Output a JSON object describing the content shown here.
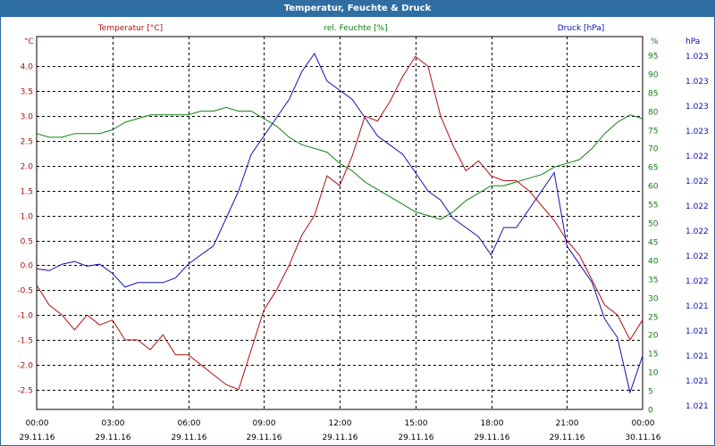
{
  "window": {
    "title": "Temperatur, Feuchte & Druck"
  },
  "colors": {
    "temperature": "#b01010",
    "humidity": "#108010",
    "pressure": "#1010b0",
    "grid": "#000000",
    "title_bar": "#2f6ea3"
  },
  "chart_data": {
    "type": "line",
    "title": "Temperatur, Feuchte & Druck",
    "grid": true,
    "legend": "top",
    "x_ticks": [
      {
        "time": "00:00",
        "date": "29.11.16"
      },
      {
        "time": "03:00",
        "date": "29.11.16"
      },
      {
        "time": "06:00",
        "date": "29.11.16"
      },
      {
        "time": "09:00",
        "date": "29.11.16"
      },
      {
        "time": "12:00",
        "date": "29.11.16"
      },
      {
        "time": "15:00",
        "date": "29.11.16"
      },
      {
        "time": "18:00",
        "date": "29.11.16"
      },
      {
        "time": "21:00",
        "date": "29.11.16"
      },
      {
        "time": "00:00",
        "date": "30.11.16"
      }
    ],
    "xlim": [
      0,
      24
    ],
    "axes": {
      "temperature": {
        "unit": "°C",
        "ylim": [
          -2.9,
          4.6
        ],
        "ticks": [
          "4.0",
          "3.5",
          "3.0",
          "2.5",
          "2.0",
          "1.5",
          "1.0",
          "0.5",
          "0.0",
          "-0.5",
          "-1.0",
          "-1.5",
          "-2.0",
          "-2.5"
        ],
        "tick_values": [
          4.0,
          3.5,
          3.0,
          2.5,
          2.0,
          1.5,
          1.0,
          0.5,
          0.0,
          -0.5,
          -1.0,
          -1.5,
          -2.0,
          -2.5
        ]
      },
      "humidity": {
        "unit": "%",
        "ylim": [
          0,
          100
        ],
        "ticks": [
          "95",
          "90",
          "85",
          "80",
          "75",
          "70",
          "65",
          "60",
          "55",
          "50",
          "45",
          "40",
          "35",
          "30",
          "25",
          "20",
          "15",
          "10",
          "5",
          "0"
        ],
        "tick_values": [
          95,
          90,
          85,
          80,
          75,
          70,
          65,
          60,
          55,
          50,
          45,
          40,
          35,
          30,
          25,
          20,
          15,
          10,
          5,
          0
        ]
      },
      "pressure": {
        "unit": "hPa",
        "ticks": [
          "1.023",
          "1.023",
          "1.023",
          "1.023",
          "1.022",
          "1.022",
          "1.022",
          "1.022",
          "1.022",
          "1.022",
          "1.021",
          "1.021",
          "1.021",
          "1.021",
          "1.021"
        ]
      }
    },
    "series": [
      {
        "name": "Temperatur [°C]",
        "axis": "temperature",
        "x": [
          0,
          0.5,
          1,
          1.5,
          2,
          2.5,
          3,
          3.5,
          4,
          4.5,
          5,
          5.5,
          6,
          6.5,
          7,
          7.5,
          8,
          8.5,
          9,
          9.5,
          10,
          10.5,
          11,
          11.5,
          12,
          12.5,
          13,
          13.5,
          14,
          14.5,
          15,
          15.5,
          16,
          16.5,
          17,
          17.5,
          18,
          18.5,
          19,
          19.5,
          20,
          20.5,
          21,
          21.5,
          22,
          22.5,
          23,
          23.5,
          24
        ],
        "values": [
          -0.4,
          -0.8,
          -1.0,
          -1.3,
          -1.0,
          -1.2,
          -1.1,
          -1.5,
          -1.5,
          -1.7,
          -1.4,
          -1.8,
          -1.8,
          -2.0,
          -2.2,
          -2.4,
          -2.5,
          -1.7,
          -0.9,
          -0.5,
          0.0,
          0.6,
          1.0,
          1.8,
          1.6,
          2.2,
          3.0,
          2.9,
          3.3,
          3.8,
          4.2,
          4.0,
          3.0,
          2.4,
          1.9,
          2.1,
          1.8,
          1.7,
          1.7,
          1.5,
          1.2,
          0.9,
          0.5,
          0.2,
          -0.3,
          -0.8,
          -1.0,
          -1.5,
          -1.1
        ]
      },
      {
        "name": "rel. Feuchte [%]",
        "axis": "humidity",
        "x": [
          0,
          0.5,
          1,
          1.5,
          2,
          2.5,
          3,
          3.5,
          4,
          4.5,
          5,
          5.5,
          6,
          6.5,
          7,
          7.5,
          8,
          8.5,
          9,
          9.5,
          10,
          10.5,
          11,
          11.5,
          12,
          12.5,
          13,
          13.5,
          14,
          14.5,
          15,
          15.5,
          16,
          16.5,
          17,
          17.5,
          18,
          18.5,
          19,
          19.5,
          20,
          20.5,
          21,
          21.5,
          22,
          22.5,
          23,
          23.5,
          24
        ],
        "values": [
          74,
          73,
          73,
          74,
          74,
          74,
          75,
          77,
          78,
          79,
          79,
          79,
          79,
          80,
          80,
          81,
          80,
          80,
          78,
          76,
          73,
          71,
          70,
          69,
          66,
          64,
          61,
          59,
          57,
          55,
          53,
          52,
          51,
          53,
          56,
          58,
          60,
          60,
          61,
          62,
          63,
          65,
          66,
          67,
          70,
          74,
          77,
          79,
          78
        ]
      },
      {
        "name": "Druck [hPa]",
        "axis": "pressure",
        "x": [
          0,
          0.5,
          1,
          1.5,
          2,
          2.5,
          3,
          3.5,
          4,
          4.5,
          5,
          5.5,
          6,
          6.5,
          7,
          7.5,
          8,
          8.5,
          9,
          9.5,
          10,
          10.5,
          11,
          11.5,
          12,
          12.5,
          13,
          13.5,
          14,
          14.5,
          15,
          15.5,
          16,
          16.5,
          17,
          17.5,
          18,
          18.5,
          19,
          19.5,
          20,
          20.5,
          21,
          21.5,
          22,
          22.5,
          23,
          23.5,
          24
        ],
        "values": [
          1.02195,
          1.02193,
          1.022,
          1.02203,
          1.02198,
          1.022,
          1.0219,
          1.02175,
          1.0218,
          1.0218,
          1.0218,
          1.02185,
          1.022,
          1.0221,
          1.0222,
          1.0225,
          1.0228,
          1.0232,
          1.0234,
          1.0236,
          1.0238,
          1.0241,
          1.0243,
          1.024,
          1.0239,
          1.0238,
          1.0236,
          1.0234,
          1.0233,
          1.0232,
          1.023,
          1.0228,
          1.0227,
          1.0225,
          1.0224,
          1.0223,
          1.0221,
          1.0224,
          1.0224,
          1.0226,
          1.0228,
          1.023,
          1.0222,
          1.022,
          1.0218,
          1.0214,
          1.0212,
          1.0206,
          1.021
        ]
      }
    ]
  },
  "legend_labels": {
    "temperature": "Temperatur [°C]",
    "humidity": "rel. Feuchte [%]",
    "pressure": "Druck [hPa]"
  }
}
